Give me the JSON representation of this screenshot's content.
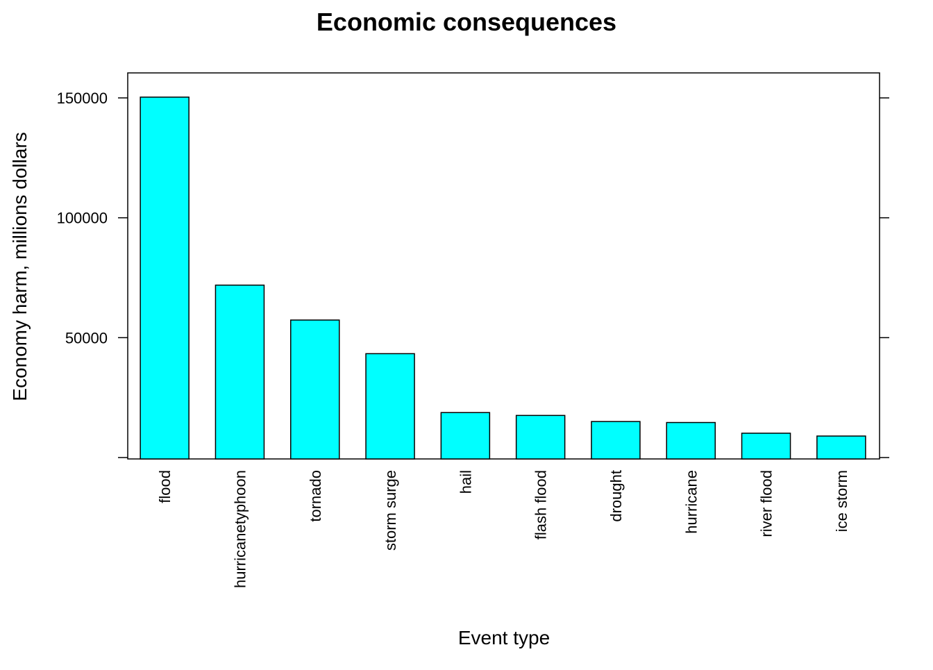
{
  "chart_data": {
    "type": "bar",
    "title": "Economic consequences",
    "xlabel": "Event type",
    "ylabel": "Economy harm, millions dollars",
    "categories": [
      "flood",
      "hurricanetyphoon",
      "tornado",
      "storm surge",
      "hail",
      "flash flood",
      "drought",
      "hurricane",
      "river flood",
      "ice storm"
    ],
    "values": [
      150320,
      71914,
      57350,
      43324,
      18758,
      17562,
      15019,
      14610,
      10148,
      8967
    ],
    "ylim": [
      0,
      160000
    ],
    "yticks": [
      0,
      50000,
      100000,
      150000
    ],
    "ytick_labels": [
      "",
      "50000",
      "100000",
      "150000"
    ],
    "bar_color": "#00ffff",
    "grid": false
  }
}
